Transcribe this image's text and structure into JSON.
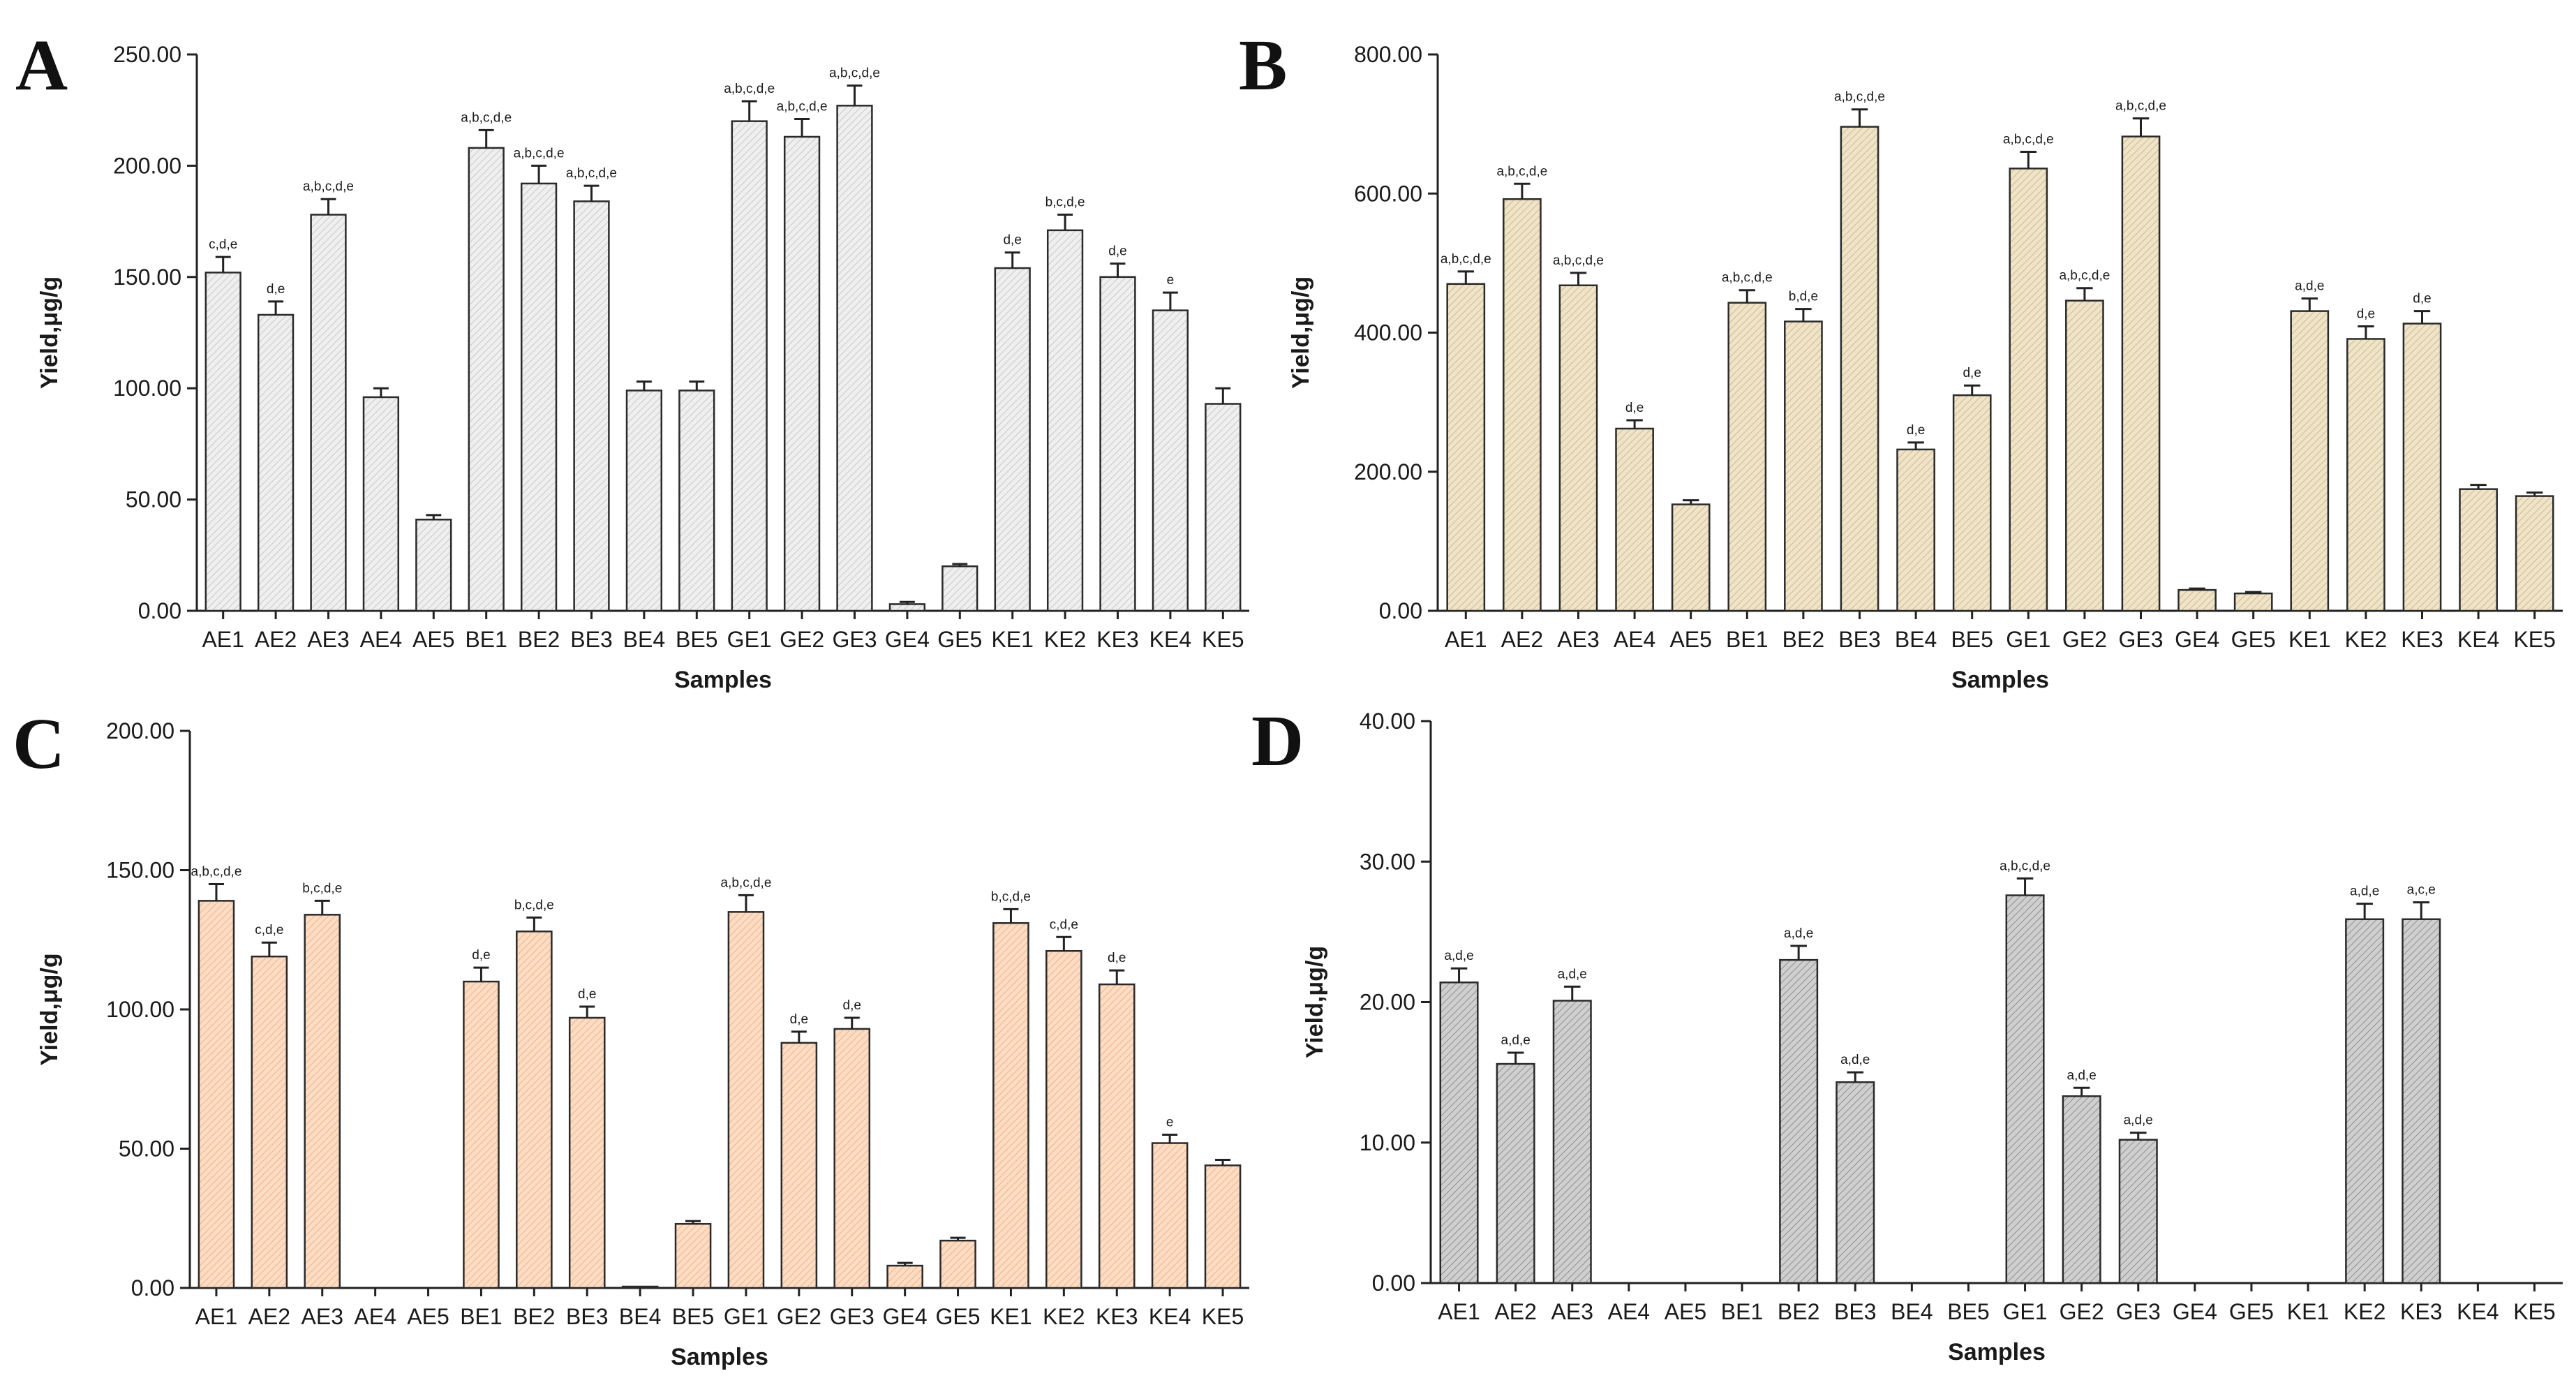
{
  "chart_data": [
    {
      "type": "bar",
      "panel": "A",
      "xlabel": "Samples",
      "ylabel": "Yield,μg/g",
      "ylim": [
        0,
        250
      ],
      "yticks": [
        "0.00",
        "50.00",
        "100.00",
        "150.00",
        "200.00",
        "250.00"
      ],
      "color": "#e9e9e9",
      "categories": [
        "AE1",
        "AE2",
        "AE3",
        "AE4",
        "AE5",
        "BE1",
        "BE2",
        "BE3",
        "BE4",
        "BE5",
        "GE1",
        "GE2",
        "GE3",
        "GE4",
        "GE5",
        "KE1",
        "KE2",
        "KE3",
        "KE4",
        "KE5"
      ],
      "values": [
        152,
        133,
        178,
        96,
        41,
        208,
        192,
        184,
        99,
        99,
        220,
        213,
        227,
        3,
        20,
        154,
        171,
        150,
        135,
        93
      ],
      "errors": [
        7,
        6,
        7,
        4,
        2,
        8,
        8,
        7,
        4,
        4,
        9,
        8,
        9,
        1,
        1,
        7,
        7,
        6,
        8,
        7
      ],
      "labels": [
        "c,d,e",
        "d,e",
        "a,b,c,d,e",
        "",
        "",
        "a,b,c,d,e",
        "a,b,c,d,e",
        "a,b,c,d,e",
        "",
        "",
        "a,b,c,d,e",
        "a,b,c,d,e",
        "a,b,c,d,e",
        "",
        "",
        "d,e",
        "b,c,d,e",
        "d,e",
        "e",
        ""
      ]
    },
    {
      "type": "bar",
      "panel": "B",
      "xlabel": "Samples",
      "ylabel": "Yield,μg/g",
      "ylim": [
        0,
        800
      ],
      "yticks": [
        "0.00",
        "200.00",
        "400.00",
        "600.00",
        "800.00"
      ],
      "color": "#ece0c2",
      "categories": [
        "AE1",
        "AE2",
        "AE3",
        "AE4",
        "AE5",
        "BE1",
        "BE2",
        "BE3",
        "BE4",
        "BE5",
        "GE1",
        "GE2",
        "GE3",
        "GE4",
        "GE5",
        "KE1",
        "KE2",
        "KE3",
        "KE4",
        "KE5"
      ],
      "values": [
        470,
        592,
        468,
        262,
        153,
        443,
        416,
        696,
        232,
        310,
        636,
        446,
        682,
        30,
        25,
        431,
        391,
        413,
        175,
        165
      ],
      "errors": [
        18,
        22,
        18,
        12,
        6,
        18,
        18,
        25,
        10,
        14,
        24,
        18,
        26,
        2,
        2,
        18,
        18,
        18,
        6,
        5
      ],
      "labels": [
        "a,b,c,d,e",
        "a,b,c,d,e",
        "a,b,c,d,e",
        "d,e",
        "",
        "a,b,c,d,e",
        "b,d,e",
        "a,b,c,d,e",
        "d,e",
        "d,e",
        "a,b,c,d,e",
        "a,b,c,d,e",
        "a,b,c,d,e",
        "",
        "",
        "a,d,e",
        "d,e",
        "d,e",
        "",
        ""
      ]
    },
    {
      "type": "bar",
      "panel": "C",
      "xlabel": "Samples",
      "ylabel": "Yield,μg/g",
      "ylim": [
        0,
        200
      ],
      "yticks": [
        "0.00",
        "50.00",
        "100.00",
        "150.00",
        "200.00"
      ],
      "color": "#fbd5b8",
      "categories": [
        "AE1",
        "AE2",
        "AE3",
        "AE4",
        "AE5",
        "BE1",
        "BE2",
        "BE3",
        "BE4",
        "BE5",
        "GE1",
        "GE2",
        "GE3",
        "GE4",
        "GE5",
        "KE1",
        "KE2",
        "KE3",
        "KE4",
        "KE5"
      ],
      "values": [
        139,
        119,
        134,
        0,
        0,
        110,
        128,
        97,
        0.5,
        23,
        135,
        88,
        93,
        8,
        17,
        131,
        121,
        109,
        52,
        44
      ],
      "errors": [
        6,
        5,
        5,
        0,
        0,
        5,
        5,
        4,
        0,
        1,
        6,
        4,
        4,
        1,
        1,
        5,
        5,
        5,
        3,
        2
      ],
      "labels": [
        "a,b,c,d,e",
        "c,d,e",
        "b,c,d,e",
        "",
        "",
        "d,e",
        "b,c,d,e",
        "d,e",
        "",
        "",
        "a,b,c,d,e",
        "d,e",
        "d,e",
        "",
        "",
        "b,c,d,e",
        "c,d,e",
        "d,e",
        "e",
        ""
      ]
    },
    {
      "type": "bar",
      "panel": "D",
      "xlabel": "Samples",
      "ylabel": "Yield,μg/g",
      "ylim": [
        0,
        40
      ],
      "yticks": [
        "0.00",
        "10.00",
        "20.00",
        "30.00",
        "40.00"
      ],
      "color": "#c4c4c4",
      "categories": [
        "AE1",
        "AE2",
        "AE3",
        "AE4",
        "AE5",
        "BE1",
        "BE2",
        "BE3",
        "BE4",
        "BE5",
        "GE1",
        "GE2",
        "GE3",
        "GE4",
        "GE5",
        "KE1",
        "KE2",
        "KE3",
        "KE4",
        "KE5"
      ],
      "values": [
        21.4,
        15.6,
        20.1,
        0,
        0,
        0,
        23.0,
        14.3,
        0,
        0,
        27.6,
        13.3,
        10.2,
        0,
        0,
        0,
        25.9,
        25.9,
        0,
        0
      ],
      "errors": [
        1.0,
        0.8,
        1.0,
        0,
        0,
        0,
        1.0,
        0.7,
        0,
        0,
        1.2,
        0.6,
        0.5,
        0,
        0,
        0,
        1.1,
        1.2,
        0,
        0
      ],
      "labels": [
        "a,d,e",
        "a,d,e",
        "a,d,e",
        "",
        "",
        "",
        "a,d,e",
        "a,d,e",
        "",
        "",
        "a,b,c,d,e",
        "a,d,e",
        "a,d,e",
        "",
        "",
        "",
        "a,d,e",
        "a,c,e",
        "",
        ""
      ]
    }
  ]
}
